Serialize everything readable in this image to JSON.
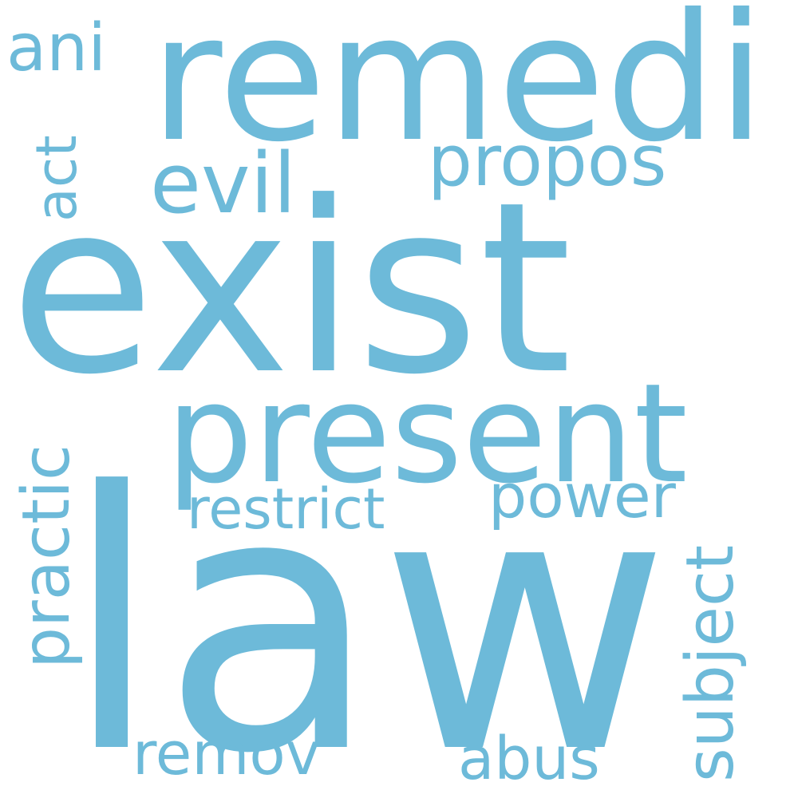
{
  "word_color": "#6dbad9",
  "background_color": "#ffffff",
  "words": {
    "exist": "exist",
    "law": "law",
    "remedi": "remedi",
    "present": "present",
    "evil": "evil",
    "propos": "propos",
    "ani": "ani",
    "act": "act",
    "practic": "practic",
    "restrict": "restrict",
    "power": "power",
    "subject": "subject",
    "remov": "remov",
    "abus": "abus"
  }
}
